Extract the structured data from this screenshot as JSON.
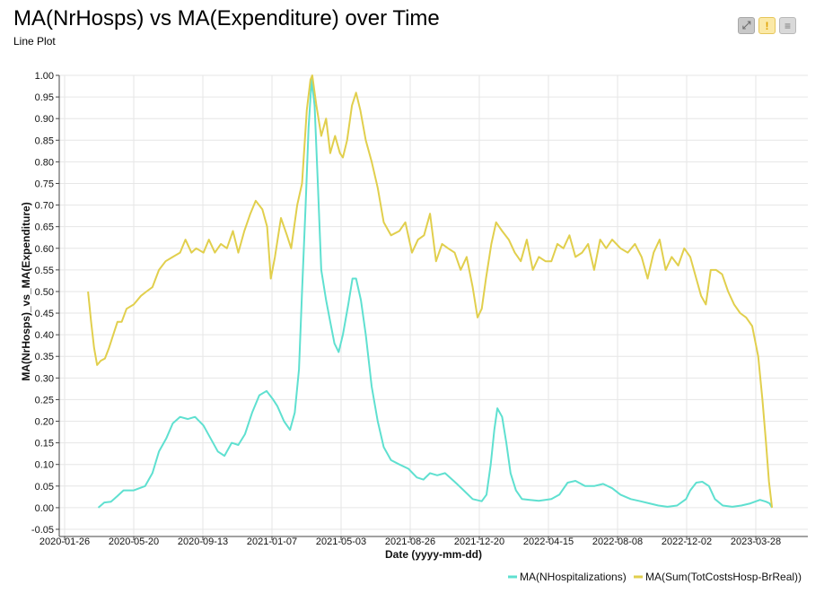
{
  "header": {
    "title": "MA(NrHosps) vs MA(Expenditure) over Time",
    "subtitle": "Line Plot"
  },
  "toolbar": {
    "buttons": [
      {
        "icon": "expand-icon"
      },
      {
        "icon": "warning-icon"
      },
      {
        "icon": "menu-icon"
      }
    ]
  },
  "chart_data": {
    "type": "line",
    "xlabel": "Date (yyyy-mm-dd)",
    "ylabel": "MA(NrHosps)_vs_MA(Expenditure)",
    "xlim": [
      "2020-01-26",
      "2023-06-22"
    ],
    "ylim": [
      -0.05,
      1.0
    ],
    "x_ticks": [
      "2020-01-26",
      "2020-05-20",
      "2020-09-13",
      "2021-01-07",
      "2021-05-03",
      "2021-08-26",
      "2021-12-20",
      "2022-04-15",
      "2022-08-08",
      "2022-12-02",
      "2023-03-28"
    ],
    "y_ticks": [
      -0.05,
      0.0,
      0.05,
      0.1,
      0.15,
      0.2,
      0.25,
      0.3,
      0.35,
      0.4,
      0.45,
      0.5,
      0.55,
      0.6,
      0.65,
      0.7,
      0.75,
      0.8,
      0.85,
      0.9,
      0.95,
      1.0
    ],
    "y_tick_labels": [
      "-0.05",
      "0.00",
      "0.05",
      "0.10",
      "0.15",
      "0.20",
      "0.25",
      "0.30",
      "0.35",
      "0.40",
      "0.45",
      "0.50",
      "0.55",
      "0.60",
      "0.65",
      "0.70",
      "0.75",
      "0.80",
      "0.85",
      "0.90",
      "0.95",
      "1.00"
    ],
    "grid": true,
    "legend_position": "bottom-right",
    "series": [
      {
        "name": "MA(NHospitalizations)",
        "color": "#5fe0d0",
        "points": [
          [
            "2020-03-22",
            0.0
          ],
          [
            "2020-04-01",
            0.012
          ],
          [
            "2020-04-12",
            0.014
          ],
          [
            "2020-04-22",
            0.026
          ],
          [
            "2020-05-03",
            0.04
          ],
          [
            "2020-05-20",
            0.04
          ],
          [
            "2020-06-08",
            0.05
          ],
          [
            "2020-06-20",
            0.08
          ],
          [
            "2020-07-01",
            0.13
          ],
          [
            "2020-07-13",
            0.16
          ],
          [
            "2020-07-24",
            0.195
          ],
          [
            "2020-08-05",
            0.21
          ],
          [
            "2020-08-18",
            0.205
          ],
          [
            "2020-08-30",
            0.21
          ],
          [
            "2020-09-13",
            0.19
          ],
          [
            "2020-09-25",
            0.16
          ],
          [
            "2020-10-07",
            0.13
          ],
          [
            "2020-10-18",
            0.12
          ],
          [
            "2020-10-30",
            0.15
          ],
          [
            "2020-11-10",
            0.145
          ],
          [
            "2020-11-21",
            0.17
          ],
          [
            "2020-12-03",
            0.22
          ],
          [
            "2020-12-15",
            0.26
          ],
          [
            "2020-12-27",
            0.27
          ],
          [
            "2021-01-07",
            0.25
          ],
          [
            "2021-01-14",
            0.235
          ],
          [
            "2021-01-25",
            0.2
          ],
          [
            "2021-02-04",
            0.18
          ],
          [
            "2021-02-12",
            0.22
          ],
          [
            "2021-02-19",
            0.32
          ],
          [
            "2021-02-24",
            0.5
          ],
          [
            "2021-03-02",
            0.7
          ],
          [
            "2021-03-07",
            0.88
          ],
          [
            "2021-03-12",
            0.99
          ],
          [
            "2021-03-17",
            0.93
          ],
          [
            "2021-03-22",
            0.76
          ],
          [
            "2021-03-28",
            0.55
          ],
          [
            "2021-04-05",
            0.48
          ],
          [
            "2021-04-12",
            0.43
          ],
          [
            "2021-04-19",
            0.38
          ],
          [
            "2021-04-26",
            0.36
          ],
          [
            "2021-05-03",
            0.4
          ],
          [
            "2021-05-12",
            0.47
          ],
          [
            "2021-05-19",
            0.53
          ],
          [
            "2021-05-25",
            0.53
          ],
          [
            "2021-06-02",
            0.48
          ],
          [
            "2021-06-10",
            0.4
          ],
          [
            "2021-06-20",
            0.28
          ],
          [
            "2021-06-30",
            0.2
          ],
          [
            "2021-07-10",
            0.14
          ],
          [
            "2021-07-22",
            0.11
          ],
          [
            "2021-08-05",
            0.1
          ],
          [
            "2021-08-20",
            0.09
          ],
          [
            "2021-09-03",
            0.07
          ],
          [
            "2021-09-14",
            0.065
          ],
          [
            "2021-09-25",
            0.08
          ],
          [
            "2021-10-07",
            0.075
          ],
          [
            "2021-10-20",
            0.08
          ],
          [
            "2021-11-05",
            0.06
          ],
          [
            "2021-11-20",
            0.04
          ],
          [
            "2021-12-05",
            0.02
          ],
          [
            "2021-12-20",
            0.015
          ],
          [
            "2021-12-28",
            0.03
          ],
          [
            "2022-01-04",
            0.1
          ],
          [
            "2022-01-10",
            0.18
          ],
          [
            "2022-01-15",
            0.23
          ],
          [
            "2022-01-23",
            0.21
          ],
          [
            "2022-01-30",
            0.15
          ],
          [
            "2022-02-06",
            0.08
          ],
          [
            "2022-02-15",
            0.04
          ],
          [
            "2022-02-25",
            0.02
          ],
          [
            "2022-03-10",
            0.018
          ],
          [
            "2022-03-25",
            0.016
          ],
          [
            "2022-04-15",
            0.02
          ],
          [
            "2022-04-28",
            0.03
          ],
          [
            "2022-05-12",
            0.058
          ],
          [
            "2022-05-25",
            0.062
          ],
          [
            "2022-06-10",
            0.05
          ],
          [
            "2022-06-25",
            0.05
          ],
          [
            "2022-07-10",
            0.055
          ],
          [
            "2022-07-25",
            0.045
          ],
          [
            "2022-08-08",
            0.03
          ],
          [
            "2022-08-25",
            0.02
          ],
          [
            "2022-09-10",
            0.015
          ],
          [
            "2022-09-25",
            0.01
          ],
          [
            "2022-10-10",
            0.005
          ],
          [
            "2022-10-25",
            0.002
          ],
          [
            "2022-11-10",
            0.005
          ],
          [
            "2022-11-25",
            0.02
          ],
          [
            "2022-12-02",
            0.04
          ],
          [
            "2022-12-12",
            0.058
          ],
          [
            "2022-12-22",
            0.06
          ],
          [
            "2023-01-02",
            0.05
          ],
          [
            "2023-01-12",
            0.02
          ],
          [
            "2023-01-25",
            0.005
          ],
          [
            "2023-02-10",
            0.002
          ],
          [
            "2023-02-25",
            0.005
          ],
          [
            "2023-03-12",
            0.01
          ],
          [
            "2023-03-28",
            0.018
          ],
          [
            "2023-04-07",
            0.014
          ],
          [
            "2023-04-13",
            0.01
          ],
          [
            "2023-04-17",
            0.0
          ]
        ]
      },
      {
        "name": "MA(Sum(TotCostsHosp-BrReal))",
        "color": "#e1cf4d",
        "points": [
          [
            "2020-03-05",
            0.5
          ],
          [
            "2020-03-10",
            0.43
          ],
          [
            "2020-03-15",
            0.37
          ],
          [
            "2020-03-20",
            0.33
          ],
          [
            "2020-03-26",
            0.34
          ],
          [
            "2020-04-02",
            0.345
          ],
          [
            "2020-04-09",
            0.37
          ],
          [
            "2020-04-16",
            0.4
          ],
          [
            "2020-04-23",
            0.43
          ],
          [
            "2020-04-30",
            0.43
          ],
          [
            "2020-05-08",
            0.46
          ],
          [
            "2020-05-20",
            0.47
          ],
          [
            "2020-06-01",
            0.49
          ],
          [
            "2020-06-10",
            0.5
          ],
          [
            "2020-06-20",
            0.51
          ],
          [
            "2020-07-01",
            0.55
          ],
          [
            "2020-07-12",
            0.57
          ],
          [
            "2020-07-24",
            0.58
          ],
          [
            "2020-08-05",
            0.59
          ],
          [
            "2020-08-14",
            0.62
          ],
          [
            "2020-08-24",
            0.59
          ],
          [
            "2020-09-01",
            0.6
          ],
          [
            "2020-09-13",
            0.59
          ],
          [
            "2020-09-22",
            0.62
          ],
          [
            "2020-10-02",
            0.59
          ],
          [
            "2020-10-12",
            0.61
          ],
          [
            "2020-10-22",
            0.6
          ],
          [
            "2020-11-01",
            0.64
          ],
          [
            "2020-11-10",
            0.59
          ],
          [
            "2020-11-20",
            0.64
          ],
          [
            "2020-11-30",
            0.68
          ],
          [
            "2020-12-09",
            0.71
          ],
          [
            "2020-12-20",
            0.69
          ],
          [
            "2020-12-28",
            0.65
          ],
          [
            "2021-01-03",
            0.53
          ],
          [
            "2021-01-10",
            0.58
          ],
          [
            "2021-01-20",
            0.67
          ],
          [
            "2021-01-30",
            0.63
          ],
          [
            "2021-02-06",
            0.6
          ],
          [
            "2021-02-16",
            0.7
          ],
          [
            "2021-02-24",
            0.75
          ],
          [
            "2021-03-04",
            0.92
          ],
          [
            "2021-03-10",
            0.99
          ],
          [
            "2021-03-13",
            1.0
          ],
          [
            "2021-03-20",
            0.93
          ],
          [
            "2021-03-28",
            0.86
          ],
          [
            "2021-04-05",
            0.9
          ],
          [
            "2021-04-12",
            0.82
          ],
          [
            "2021-04-20",
            0.86
          ],
          [
            "2021-04-28",
            0.82
          ],
          [
            "2021-05-03",
            0.81
          ],
          [
            "2021-05-10",
            0.85
          ],
          [
            "2021-05-18",
            0.93
          ],
          [
            "2021-05-25",
            0.96
          ],
          [
            "2021-06-01",
            0.92
          ],
          [
            "2021-06-10",
            0.85
          ],
          [
            "2021-06-20",
            0.8
          ],
          [
            "2021-06-30",
            0.74
          ],
          [
            "2021-07-10",
            0.66
          ],
          [
            "2021-07-22",
            0.63
          ],
          [
            "2021-08-05",
            0.64
          ],
          [
            "2021-08-15",
            0.66
          ],
          [
            "2021-08-26",
            0.59
          ],
          [
            "2021-09-05",
            0.62
          ],
          [
            "2021-09-15",
            0.63
          ],
          [
            "2021-09-25",
            0.68
          ],
          [
            "2021-10-05",
            0.57
          ],
          [
            "2021-10-15",
            0.61
          ],
          [
            "2021-10-25",
            0.6
          ],
          [
            "2021-11-05",
            0.59
          ],
          [
            "2021-11-15",
            0.55
          ],
          [
            "2021-11-25",
            0.58
          ],
          [
            "2021-12-05",
            0.51
          ],
          [
            "2021-12-13",
            0.44
          ],
          [
            "2021-12-20",
            0.46
          ],
          [
            "2021-12-27",
            0.53
          ],
          [
            "2022-01-05",
            0.61
          ],
          [
            "2022-01-13",
            0.66
          ],
          [
            "2022-01-23",
            0.64
          ],
          [
            "2022-02-03",
            0.62
          ],
          [
            "2022-02-13",
            0.59
          ],
          [
            "2022-02-23",
            0.57
          ],
          [
            "2022-03-05",
            0.62
          ],
          [
            "2022-03-15",
            0.55
          ],
          [
            "2022-03-25",
            0.58
          ],
          [
            "2022-04-05",
            0.57
          ],
          [
            "2022-04-15",
            0.57
          ],
          [
            "2022-04-25",
            0.61
          ],
          [
            "2022-05-05",
            0.6
          ],
          [
            "2022-05-15",
            0.63
          ],
          [
            "2022-05-25",
            0.58
          ],
          [
            "2022-06-05",
            0.59
          ],
          [
            "2022-06-15",
            0.61
          ],
          [
            "2022-06-25",
            0.55
          ],
          [
            "2022-07-05",
            0.62
          ],
          [
            "2022-07-15",
            0.6
          ],
          [
            "2022-07-25",
            0.62
          ],
          [
            "2022-08-08",
            0.6
          ],
          [
            "2022-08-20",
            0.59
          ],
          [
            "2022-09-01",
            0.61
          ],
          [
            "2022-09-12",
            0.58
          ],
          [
            "2022-09-22",
            0.53
          ],
          [
            "2022-10-02",
            0.59
          ],
          [
            "2022-10-12",
            0.62
          ],
          [
            "2022-10-22",
            0.55
          ],
          [
            "2022-11-01",
            0.58
          ],
          [
            "2022-11-12",
            0.56
          ],
          [
            "2022-11-22",
            0.6
          ],
          [
            "2022-12-02",
            0.58
          ],
          [
            "2022-12-12",
            0.53
          ],
          [
            "2022-12-20",
            0.49
          ],
          [
            "2022-12-28",
            0.47
          ],
          [
            "2023-01-05",
            0.55
          ],
          [
            "2023-01-14",
            0.55
          ],
          [
            "2023-01-24",
            0.54
          ],
          [
            "2023-02-03",
            0.5
          ],
          [
            "2023-02-13",
            0.47
          ],
          [
            "2023-02-23",
            0.45
          ],
          [
            "2023-03-05",
            0.44
          ],
          [
            "2023-03-15",
            0.42
          ],
          [
            "2023-03-25",
            0.35
          ],
          [
            "2023-04-01",
            0.25
          ],
          [
            "2023-04-07",
            0.15
          ],
          [
            "2023-04-12",
            0.06
          ],
          [
            "2023-04-17",
            0.0
          ]
        ]
      }
    ]
  }
}
